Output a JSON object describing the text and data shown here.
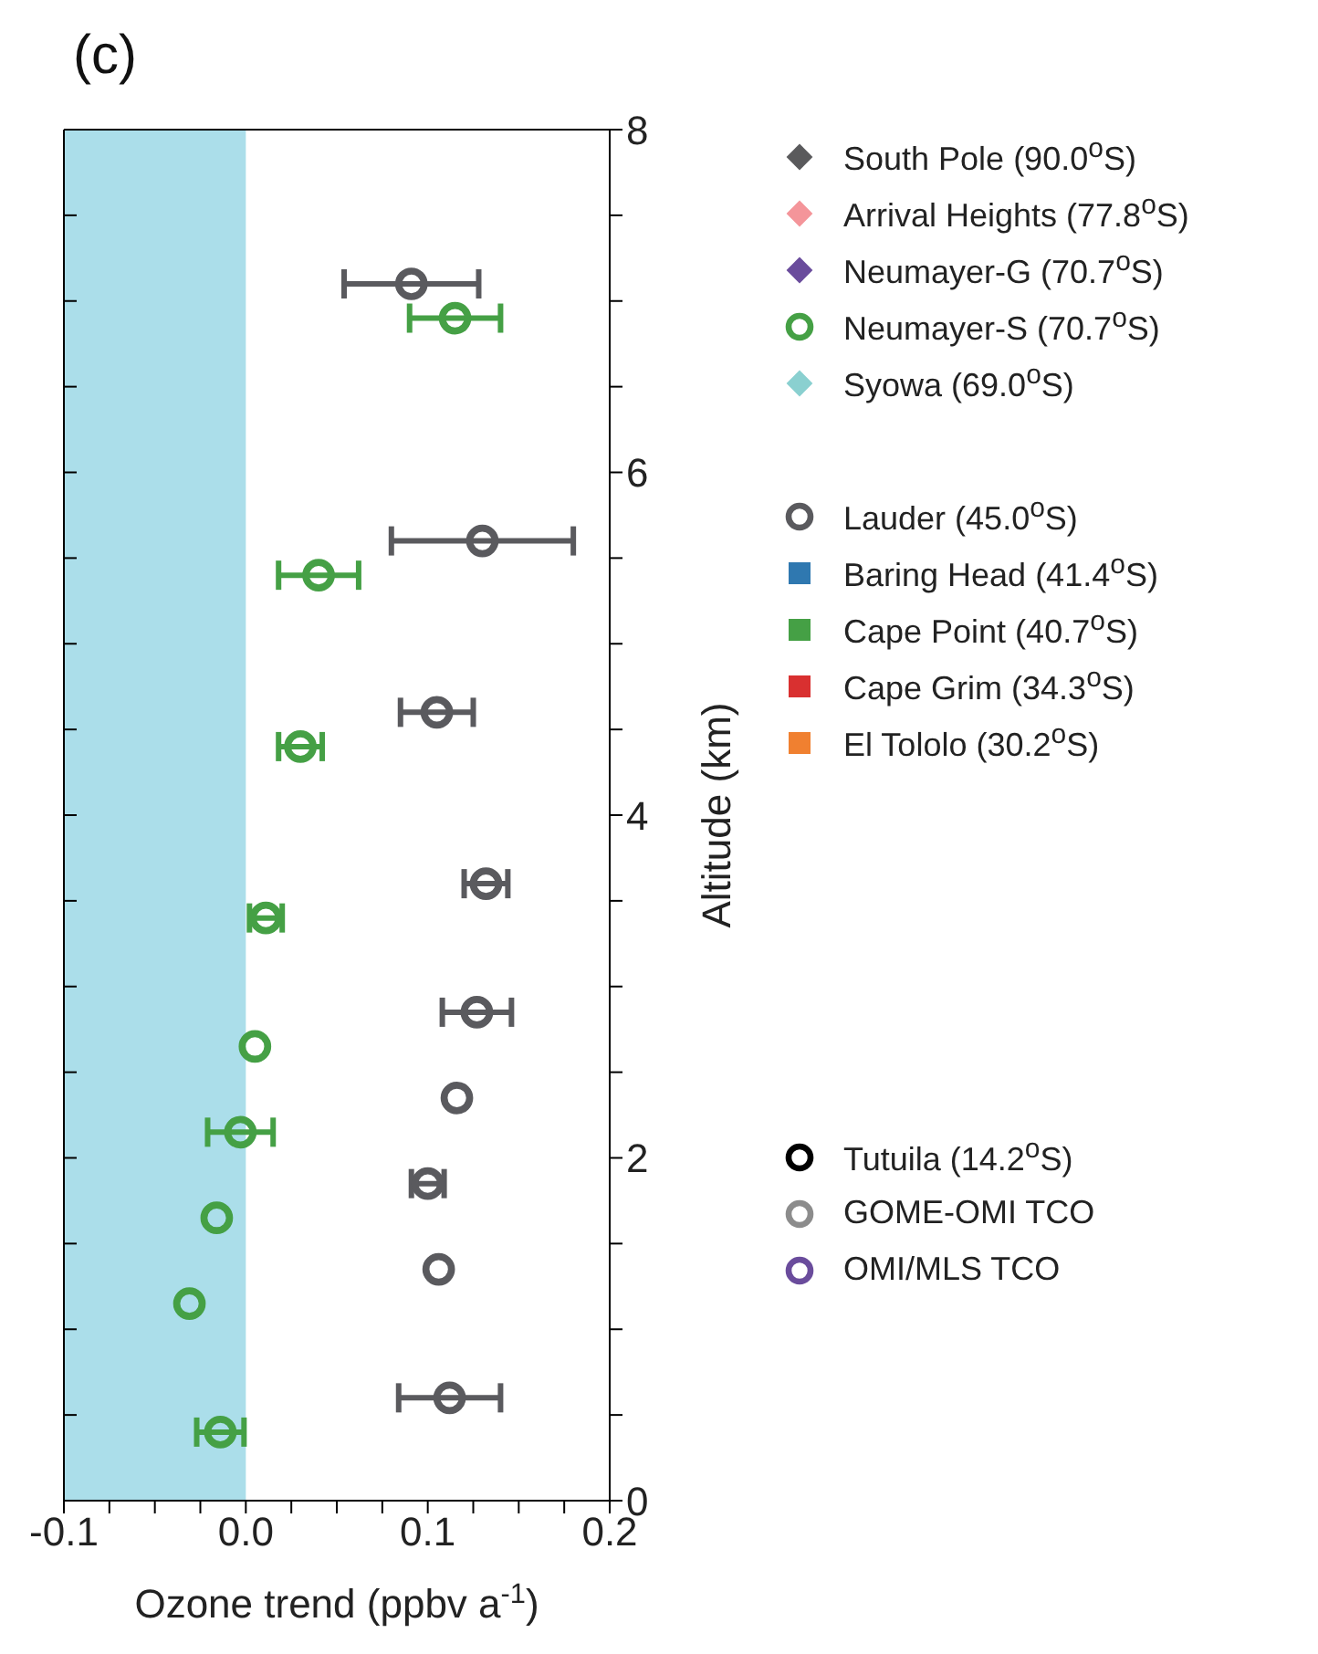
{
  "chart_data": {
    "type": "scatter",
    "title": "(c)",
    "xlabel": "Ozone trend (ppbv a$^{-1}$)",
    "ylabel": "Altitude (km)",
    "xlim": [
      -0.1,
      0.2
    ],
    "xticks": [
      -0.1,
      {
        "value": -0.075,
        "label": null
      },
      {
        "value": -0.05,
        "label": null
      },
      {
        "value": -0.025,
        "label": null
      },
      {
        "value": 0,
        "label": "0.0"
      },
      {
        "value": 0.025,
        "label": null
      },
      {
        "value": 0.05,
        "label": null
      },
      {
        "value": 0.075,
        "label": null
      },
      0.1,
      {
        "value": 0.125,
        "label": null
      },
      {
        "value": 0.15,
        "label": null
      },
      {
        "value": 0.175,
        "label": null
      },
      0.2
    ],
    "ylim": [
      0,
      8
    ],
    "yticks": [
      0,
      {
        "value": 0.5,
        "label": null
      },
      {
        "value": 1,
        "label": null
      },
      {
        "value": 1.5,
        "label": null
      },
      2,
      {
        "value": 2.5,
        "label": null
      },
      {
        "value": 3,
        "label": null
      },
      {
        "value": 3.5,
        "label": null
      },
      4,
      {
        "value": 4.5,
        "label": null
      },
      {
        "value": 5,
        "label": null
      },
      {
        "value": 5.5,
        "label": null
      },
      6,
      {
        "value": 6.5,
        "label": null
      },
      {
        "value": 7,
        "label": null
      },
      {
        "value": 7.5,
        "label": null
      },
      8
    ],
    "bands": [
      {
        "axis": "x",
        "from": -0.1,
        "to": 0,
        "color": "#abdeea"
      }
    ],
    "legend": "right",
    "series": [
      {
        "name": "South Pole (90.0$^{o}$S)",
        "color": "#5a5a5c",
        "marker": "diamond"
      },
      {
        "name": "Arrival Heights (77.8$^{o}$S)",
        "color": "#f4959a",
        "marker": "diamond"
      },
      {
        "name": "Neumayer-G (70.7$^{o}$S)",
        "color": "#6a4c9c",
        "marker": "diamond"
      },
      {
        "name": "Neumayer-S (70.7$^{o}$S)",
        "color": "#45a045",
        "marker": "circle",
        "x": [
          0.115,
          0.04,
          0.03,
          0.011,
          0.005,
          -0.003,
          -0.016,
          -0.031,
          -0.014
        ],
        "values": [
          6.9,
          5.4,
          4.4,
          3.4,
          2.65,
          2.15,
          1.65,
          1.15,
          0.4
        ],
        "xerrors": [
          0.025,
          0.022,
          0.012,
          0.009,
          null,
          0.018,
          null,
          null,
          0.013
        ]
      },
      {
        "name": "Syowa (69.0$^{o}$S)",
        "color": "#8ad0d0",
        "marker": "diamond"
      },
      {
        "name": "Lauder (45.0$^{o}$S)",
        "color": "#5a5a5e",
        "marker": "circle",
        "x": [
          0.091,
          0.13,
          0.105,
          0.132,
          0.127,
          0.116,
          0.1,
          0.106,
          0.112
        ],
        "values": [
          7.1,
          5.6,
          4.6,
          3.6,
          2.85,
          2.35,
          1.85,
          1.35,
          0.6
        ],
        "xerrors": [
          0.037,
          0.05,
          0.02,
          0.012,
          0.019,
          null,
          0.009,
          null,
          0.028
        ]
      },
      {
        "name": "Baring Head (41.4$^{o}$S)",
        "color": "#2f78b0",
        "marker": "square"
      },
      {
        "name": "Cape Point (40.7$^{o}$S)",
        "color": "#45a045",
        "marker": "square"
      },
      {
        "name": "Cape Grim (34.3$^{o}$S)",
        "color": "#d93030",
        "marker": "square"
      },
      {
        "name": "El Tololo (30.2$^{o}$S)",
        "color": "#f08030",
        "marker": "square"
      },
      {
        "name": "Tutuila (14.2$^{o}$S)",
        "color": "#000000",
        "marker": "circle"
      },
      {
        "name": "GOME-OMI TCO",
        "color": "#8c8c8c",
        "marker": "circle"
      },
      {
        "name": "OMI/MLS TCO",
        "color": "#6a4c9c",
        "marker": "circle"
      }
    ]
  }
}
